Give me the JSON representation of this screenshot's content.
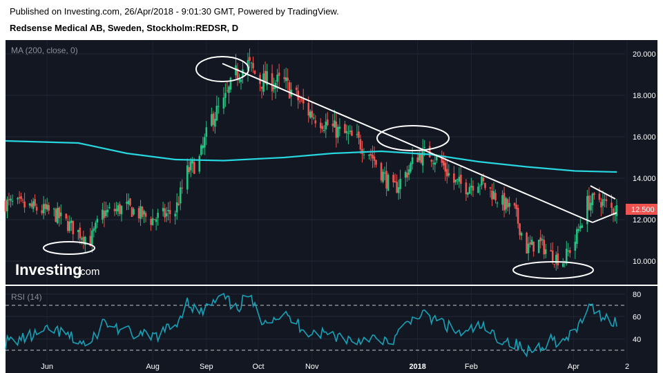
{
  "header": {
    "published": "Published on Investing.com, 26/Apr/2018 - 9:01:30 GMT, Powered by TradingView.",
    "symbol": "Redsense Medical AB, Sweden, Stockholm:REDSR, D"
  },
  "colors": {
    "background": "#131722",
    "up_candle": "#26c281",
    "down_candle": "#ef5350",
    "ma_line": "#26d7e0",
    "rsi_line": "#17a2b8",
    "trendline": "#ffffff",
    "price_tag": "#ef5350"
  },
  "watermark": {
    "brand": "Investing",
    "suffix": ".com"
  },
  "chart_data": [
    {
      "type": "candlestick",
      "indicator": "MA (200, close, 0)",
      "ylim": [
        9.0,
        20.6
      ],
      "y_ticks": [
        "20.000",
        "18.000",
        "16.000",
        "14.000",
        "12.000",
        "10.000"
      ],
      "last_price_label": "12.500",
      "x_ticks": [
        "Jun",
        "Aug",
        "Sep",
        "Oct",
        "Nov",
        "2018",
        "Feb",
        "Apr",
        "2"
      ],
      "price_series": [
        {
          "d": "2017-05-08",
          "c": 12.8
        },
        {
          "d": "2017-05-22",
          "c": 12.6
        },
        {
          "d": "2017-06-05",
          "c": 12.3
        },
        {
          "d": "2017-06-19",
          "c": 11.4
        },
        {
          "d": "2017-06-26",
          "c": 11.0
        },
        {
          "d": "2017-07-03",
          "c": 12.3
        },
        {
          "d": "2017-07-17",
          "c": 12.6
        },
        {
          "d": "2017-07-31",
          "c": 12.0
        },
        {
          "d": "2017-08-14",
          "c": 12.4
        },
        {
          "d": "2017-08-21",
          "c": 14.3
        },
        {
          "d": "2017-08-28",
          "c": 14.9
        },
        {
          "d": "2017-09-04",
          "c": 16.9
        },
        {
          "d": "2017-09-11",
          "c": 17.6
        },
        {
          "d": "2017-09-18",
          "c": 19.0
        },
        {
          "d": "2017-09-25",
          "c": 19.5
        },
        {
          "d": "2017-10-02",
          "c": 18.7
        },
        {
          "d": "2017-10-16",
          "c": 18.6
        },
        {
          "d": "2017-10-30",
          "c": 17.2
        },
        {
          "d": "2017-11-13",
          "c": 16.4
        },
        {
          "d": "2017-11-27",
          "c": 15.8
        },
        {
          "d": "2017-12-04",
          "c": 15.3
        },
        {
          "d": "2017-12-11",
          "c": 14.3
        },
        {
          "d": "2017-12-18",
          "c": 13.4
        },
        {
          "d": "2017-12-25",
          "c": 14.2
        },
        {
          "d": "2018-01-01",
          "c": 15.1
        },
        {
          "d": "2018-01-08",
          "c": 15.2
        },
        {
          "d": "2018-01-15",
          "c": 14.7
        },
        {
          "d": "2018-01-22",
          "c": 13.8
        },
        {
          "d": "2018-01-29",
          "c": 13.6
        },
        {
          "d": "2018-02-05",
          "c": 13.9
        },
        {
          "d": "2018-02-12",
          "c": 13.4
        },
        {
          "d": "2018-02-19",
          "c": 12.8
        },
        {
          "d": "2018-02-26",
          "c": 12.4
        },
        {
          "d": "2018-03-05",
          "c": 10.6
        },
        {
          "d": "2018-03-12",
          "c": 10.9
        },
        {
          "d": "2018-03-19",
          "c": 10.3
        },
        {
          "d": "2018-03-26",
          "c": 10.0
        },
        {
          "d": "2018-04-02",
          "c": 11.0
        },
        {
          "d": "2018-04-09",
          "c": 12.8
        },
        {
          "d": "2018-04-16",
          "c": 13.0
        },
        {
          "d": "2018-04-23",
          "c": 12.5
        }
      ],
      "ma_200": [
        {
          "d": "2017-05-08",
          "v": 15.8
        },
        {
          "d": "2017-06-19",
          "v": 15.7
        },
        {
          "d": "2017-07-17",
          "v": 15.2
        },
        {
          "d": "2017-08-14",
          "v": 14.9
        },
        {
          "d": "2017-09-11",
          "v": 14.85
        },
        {
          "d": "2017-10-16",
          "v": 15.0
        },
        {
          "d": "2017-11-13",
          "v": 15.2
        },
        {
          "d": "2017-12-11",
          "v": 15.3
        },
        {
          "d": "2018-01-08",
          "v": 15.15
        },
        {
          "d": "2018-02-05",
          "v": 14.8
        },
        {
          "d": "2018-03-05",
          "v": 14.55
        },
        {
          "d": "2018-04-02",
          "v": 14.35
        },
        {
          "d": "2018-04-26",
          "v": 14.3
        }
      ]
    },
    {
      "type": "line",
      "indicator": "RSI (14)",
      "ylim": [
        22,
        86
      ],
      "y_ticks": [
        "80",
        "60",
        "40"
      ],
      "bands": [
        70,
        30
      ],
      "rsi_series": [
        {
          "d": "2017-05-08",
          "v": 37
        },
        {
          "d": "2017-05-22",
          "v": 42
        },
        {
          "d": "2017-06-05",
          "v": 48
        },
        {
          "d": "2017-06-19",
          "v": 38
        },
        {
          "d": "2017-06-26",
          "v": 34
        },
        {
          "d": "2017-07-03",
          "v": 55
        },
        {
          "d": "2017-07-17",
          "v": 46
        },
        {
          "d": "2017-07-31",
          "v": 41
        },
        {
          "d": "2017-08-14",
          "v": 52
        },
        {
          "d": "2017-08-21",
          "v": 74
        },
        {
          "d": "2017-08-28",
          "v": 62
        },
        {
          "d": "2017-09-04",
          "v": 71
        },
        {
          "d": "2017-09-11",
          "v": 77
        },
        {
          "d": "2017-09-18",
          "v": 66
        },
        {
          "d": "2017-09-25",
          "v": 79
        },
        {
          "d": "2017-10-02",
          "v": 58
        },
        {
          "d": "2017-10-16",
          "v": 61
        },
        {
          "d": "2017-10-30",
          "v": 47
        },
        {
          "d": "2017-11-13",
          "v": 44
        },
        {
          "d": "2017-11-27",
          "v": 38
        },
        {
          "d": "2017-12-04",
          "v": 43
        },
        {
          "d": "2017-12-11",
          "v": 35
        },
        {
          "d": "2017-12-18",
          "v": 40
        },
        {
          "d": "2017-12-25",
          "v": 51
        },
        {
          "d": "2018-01-01",
          "v": 63
        },
        {
          "d": "2018-01-08",
          "v": 58
        },
        {
          "d": "2018-01-15",
          "v": 55
        },
        {
          "d": "2018-01-22",
          "v": 47
        },
        {
          "d": "2018-01-29",
          "v": 44
        },
        {
          "d": "2018-02-05",
          "v": 52
        },
        {
          "d": "2018-02-12",
          "v": 45
        },
        {
          "d": "2018-02-19",
          "v": 40
        },
        {
          "d": "2018-02-26",
          "v": 36
        },
        {
          "d": "2018-03-05",
          "v": 28
        },
        {
          "d": "2018-03-12",
          "v": 33
        },
        {
          "d": "2018-03-19",
          "v": 40
        },
        {
          "d": "2018-03-26",
          "v": 37
        },
        {
          "d": "2018-04-02",
          "v": 45
        },
        {
          "d": "2018-04-09",
          "v": 68
        },
        {
          "d": "2018-04-16",
          "v": 63
        },
        {
          "d": "2018-04-23",
          "v": 56
        }
      ]
    }
  ]
}
